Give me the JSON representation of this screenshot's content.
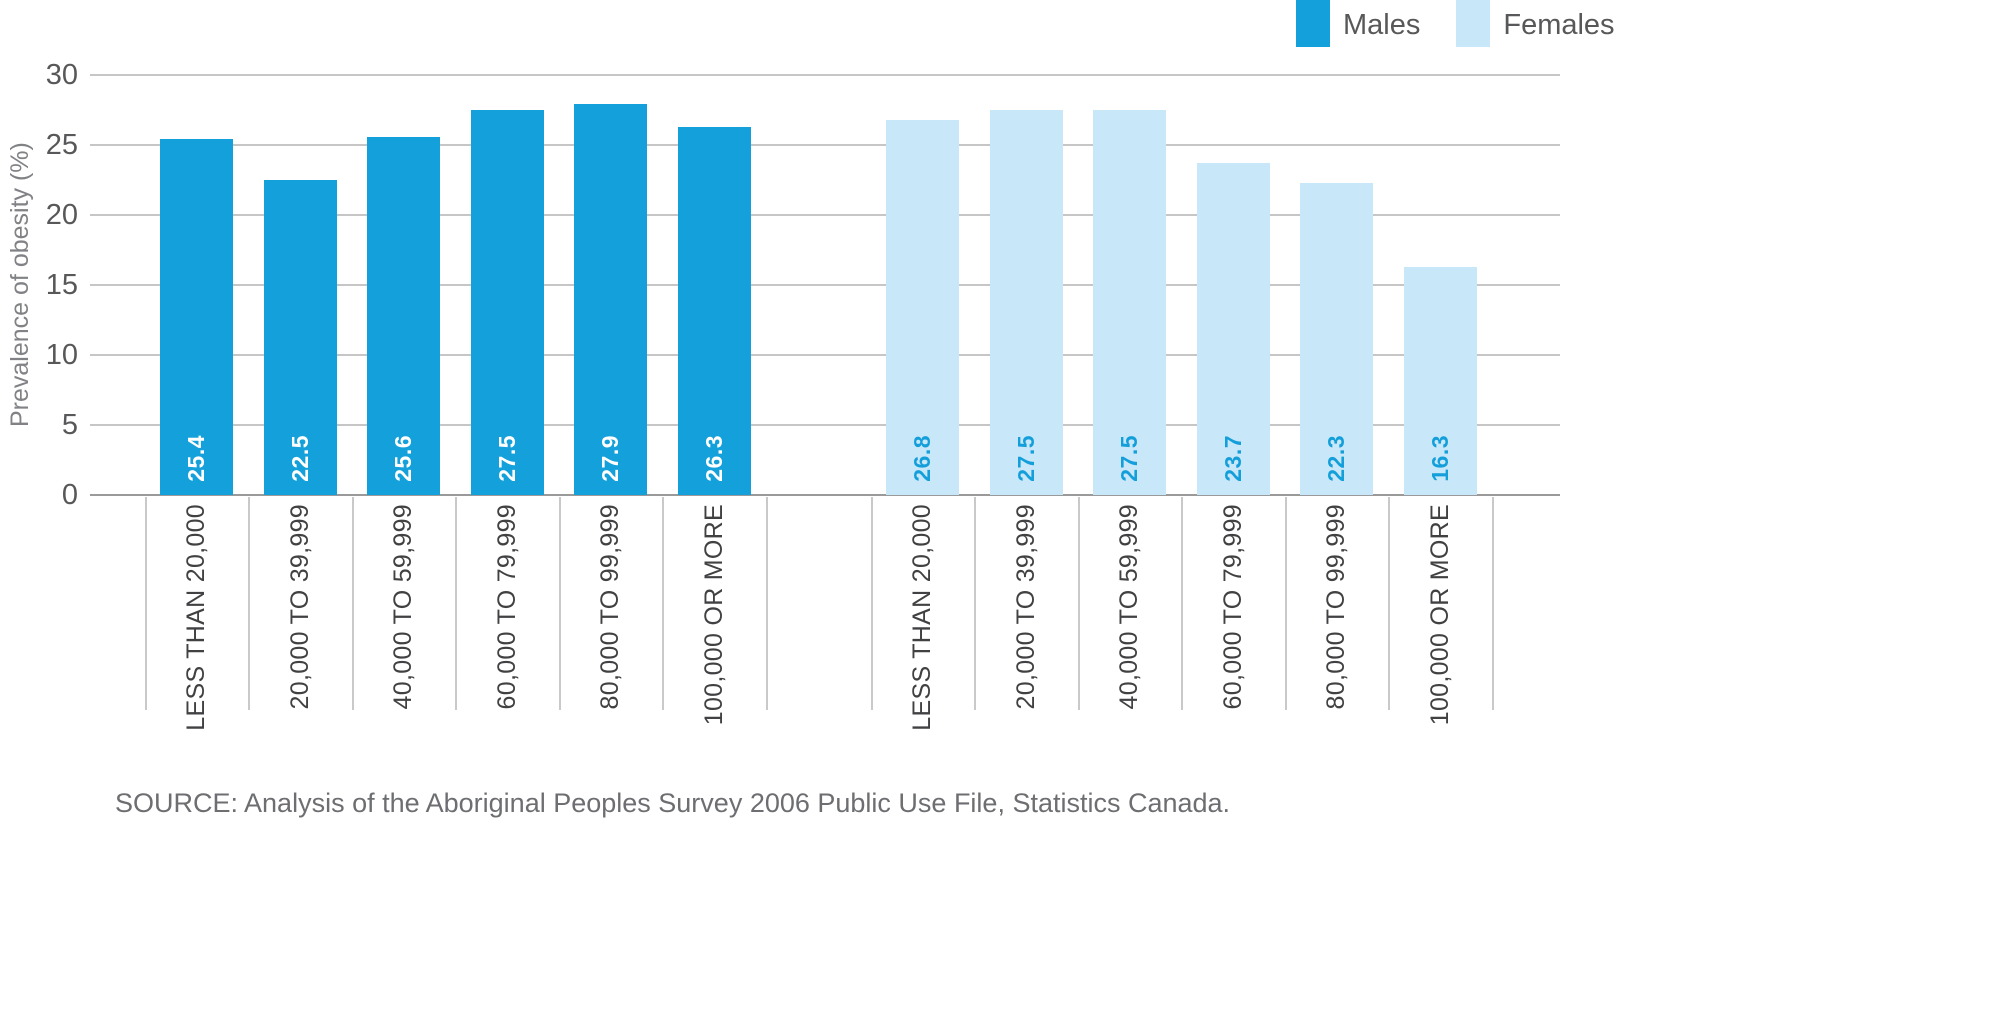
{
  "chart_data": {
    "type": "bar",
    "title": "",
    "xlabel": "",
    "ylabel": "Prevalence of obesity (%)",
    "ylim": [
      0,
      30
    ],
    "yticks": [
      0,
      5,
      10,
      15,
      20,
      25,
      30
    ],
    "grid": true,
    "legend_position": "top-right",
    "categories": [
      "LESS THAN 20,000",
      "20,000 TO 39,999",
      "40,000 TO 59,999",
      "60,000 TO 79,999",
      "80,000 TO 99,999",
      "100,000 OR MORE"
    ],
    "series": [
      {
        "name": "Males",
        "color": "#14A0DA",
        "label_color": "#ffffff",
        "values": [
          25.4,
          22.5,
          25.6,
          27.5,
          27.9,
          26.3
        ]
      },
      {
        "name": "Females",
        "color": "#C8E7F8",
        "label_color": "#149FDB",
        "values": [
          26.8,
          27.5,
          27.5,
          23.7,
          22.3,
          16.3
        ]
      }
    ],
    "source": "SOURCE: Analysis of the Aboriginal Peoples Survey 2006 Public Use File, Statistics Canada."
  }
}
